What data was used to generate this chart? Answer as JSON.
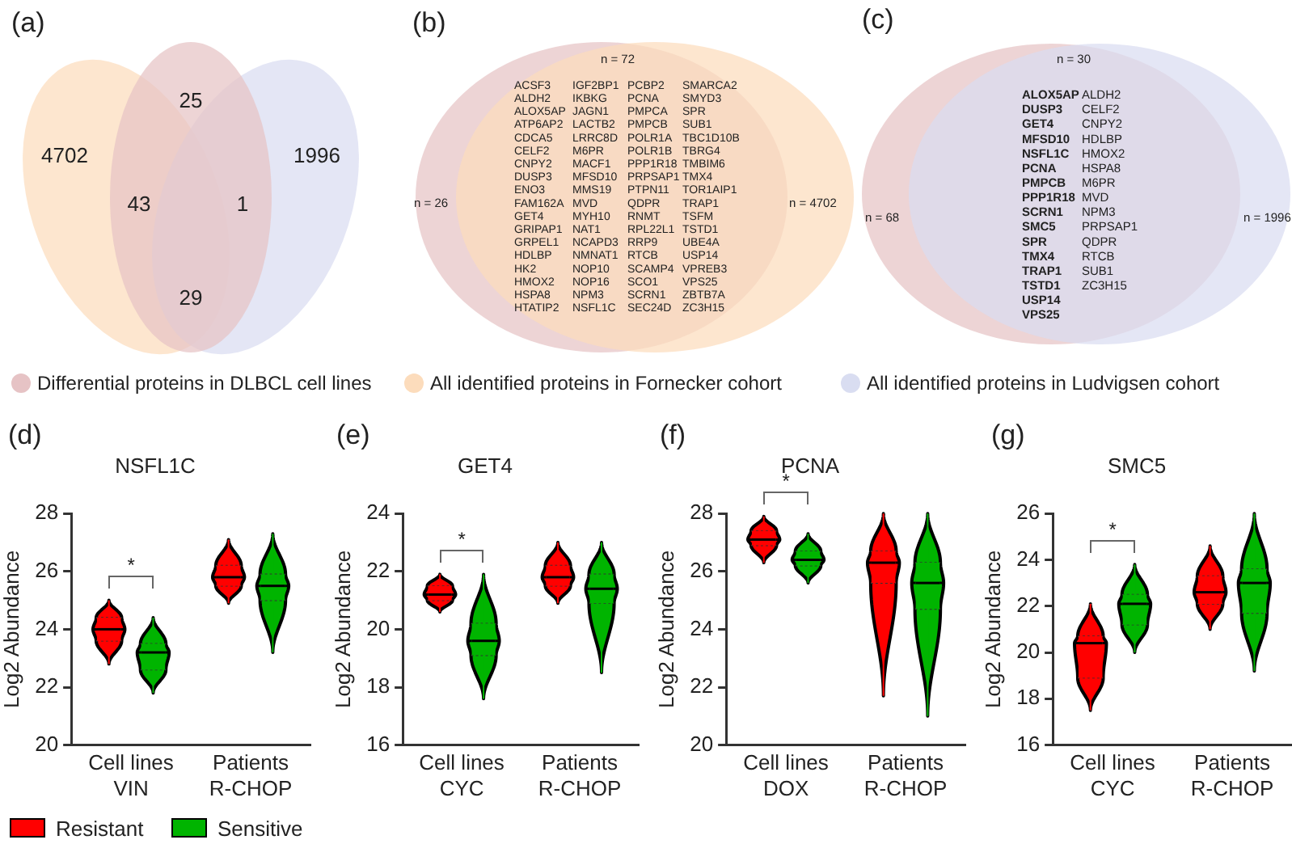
{
  "chart_data": [
    {
      "type": "other",
      "annotations": [
        "(a)",
        "4702",
        "25",
        "1996",
        "43",
        "1",
        "29"
      ],
      "series": [
        {
          "name": "Differential proteins in DLBCL cell lines",
          "color": "#e6c3c5"
        },
        {
          "name": "All identified proteins in Fornecker cohort",
          "color": "#fcdcbc"
        },
        {
          "name": "All identified proteins in Ludvigsen cohort",
          "color": "#d9ddf1"
        }
      ],
      "legend": "bottom"
    },
    {
      "type": "other",
      "annotations": [
        "(b)",
        "n = 72",
        "n = 26",
        "n = 4702",
        "ACSF3",
        "ALDH2",
        "ALOX5AP",
        "ATP6AP2",
        "CDCA5",
        "CELF2",
        "CNPY2",
        "DUSP3",
        "ENO3",
        "FAM162A",
        "GET4",
        "GRIPAP1",
        "GRPEL1",
        "HDLBP",
        "HK2",
        "HMOX2",
        "HSPA8",
        "HTATIP2",
        "IGF2BP1",
        "IKBKG",
        "JAGN1",
        "LACTB2",
        "LRRC8D",
        "M6PR",
        "MACF1",
        "MFSD10",
        "MMS19",
        "MVD",
        "MYH10",
        "NAT1",
        "NCAPD3",
        "NMNAT1",
        "NOP10",
        "NOP16",
        "NPM3",
        "NSFL1C",
        "PCBP2",
        "PCNA",
        "PMPCA",
        "PMPCB",
        "POLR1A",
        "POLR1B",
        "PPP1R18",
        "PRPSAP1",
        "PTPN11",
        "QDPR",
        "RNMT",
        "RPL22L1",
        "RRP9",
        "RTCB",
        "SCAMP4",
        "SCO1",
        "SCRN1",
        "SEC24D",
        "SMARCA2",
        "SMYD3",
        "SPR",
        "SUB1",
        "TBC1D10B",
        "TBRG4",
        "TMBIM6",
        "TMX4",
        "TOR1AIP1",
        "TRAP1",
        "TSFM",
        "TSTD1",
        "UBE4A",
        "USP14",
        "VPREB3",
        "VPS25",
        "ZBTB7A",
        "ZC3H15"
      ]
    },
    {
      "type": "other",
      "annotations": [
        "(c)",
        "n = 30",
        "n = 68",
        "n = 1996",
        "ALOX5AP",
        "DUSP3",
        "GET4",
        "MFSD10",
        "NSFL1C",
        "PCNA",
        "PMPCB",
        "PPP1R18",
        "SCRN1",
        "SMC5",
        "SPR",
        "TMX4",
        "TRAP1",
        "TSTD1",
        "USP14",
        "VPS25",
        "ALDH2",
        "CELF2",
        "CNPY2",
        "HDLBP",
        "HMOX2",
        "HSPA8",
        "M6PR",
        "MVD",
        "NPM3",
        "PRPSAP1",
        "QDPR",
        "RTCB",
        "SUB1",
        "ZC3H15"
      ]
    },
    {
      "type": "box",
      "title": "NSFL1C",
      "ylabel": "Log2 Abundance",
      "categories": [
        "Cell lines\nVIN",
        "Patients\nR-CHOP"
      ],
      "ylim": [
        20,
        28
      ],
      "yticks": [
        20,
        22,
        24,
        26,
        28
      ],
      "legend": "bottom left",
      "annotations": [
        "(d)",
        "*"
      ],
      "series": [
        {
          "name": "Resistant",
          "color": "#ff0000",
          "boxes": [
            {
              "low": 22.8,
              "q1": 23.6,
              "median": 24.0,
              "q3": 24.4,
              "high": 25.0
            },
            {
              "low": 24.9,
              "q1": 25.5,
              "median": 25.8,
              "q3": 26.2,
              "high": 27.1
            }
          ]
        },
        {
          "name": "Sensitive",
          "color": "#00b400",
          "boxes": [
            {
              "low": 21.8,
              "q1": 22.6,
              "median": 23.2,
              "q3": 23.5,
              "high": 24.4
            },
            {
              "low": 23.2,
              "q1": 25.0,
              "median": 25.5,
              "q3": 25.9,
              "high": 27.3
            }
          ]
        }
      ]
    },
    {
      "type": "box",
      "title": "GET4",
      "ylabel": "Log2 Abundance",
      "categories": [
        "Cell lines\nCYC",
        "Patients\nR-CHOP"
      ],
      "ylim": [
        16,
        24
      ],
      "yticks": [
        16,
        18,
        20,
        22,
        24
      ],
      "annotations": [
        "(e)",
        "*"
      ],
      "series": [
        {
          "color": "#ff0000",
          "boxes": [
            {
              "low": 20.6,
              "q1": 21.0,
              "median": 21.2,
              "q3": 21.5,
              "high": 21.9
            },
            {
              "low": 20.9,
              "q1": 21.5,
              "median": 21.8,
              "q3": 22.2,
              "high": 23.0
            }
          ]
        },
        {
          "color": "#00b400",
          "boxes": [
            {
              "low": 17.6,
              "q1": 19.1,
              "median": 19.6,
              "q3": 20.2,
              "high": 21.9
            },
            {
              "low": 18.5,
              "q1": 20.9,
              "median": 21.4,
              "q3": 21.9,
              "high": 23.0
            }
          ]
        }
      ]
    },
    {
      "type": "box",
      "title": "PCNA",
      "ylabel": "Log2 Abundance",
      "categories": [
        "Cell lines\nDOX",
        "Patients\nR-CHOP"
      ],
      "ylim": [
        20,
        28
      ],
      "yticks": [
        20,
        22,
        24,
        26,
        28
      ],
      "annotations": [
        "(f)",
        "*"
      ],
      "series": [
        {
          "color": "#ff0000",
          "boxes": [
            {
              "low": 26.3,
              "q1": 26.9,
              "median": 27.1,
              "q3": 27.4,
              "high": 27.9
            },
            {
              "low": 21.7,
              "q1": 25.6,
              "median": 26.3,
              "q3": 26.7,
              "high": 28.0
            }
          ]
        },
        {
          "color": "#00b400",
          "boxes": [
            {
              "low": 25.6,
              "q1": 26.2,
              "median": 26.4,
              "q3": 26.7,
              "high": 27.3
            },
            {
              "low": 21.0,
              "q1": 24.7,
              "median": 25.6,
              "q3": 26.3,
              "high": 28.0
            }
          ]
        }
      ]
    },
    {
      "type": "box",
      "title": "SMC5",
      "ylabel": "Log2 Abundance",
      "categories": [
        "Cell lines\nCYC",
        "Patients\nR-CHOP"
      ],
      "ylim": [
        16,
        26
      ],
      "yticks": [
        16,
        18,
        20,
        22,
        24,
        26
      ],
      "annotations": [
        "(g)",
        "*"
      ],
      "series": [
        {
          "color": "#ff0000",
          "boxes": [
            {
              "low": 17.5,
              "q1": 18.9,
              "median": 20.4,
              "q3": 20.7,
              "high": 22.1
            },
            {
              "low": 21.0,
              "q1": 22.1,
              "median": 22.6,
              "q3": 23.3,
              "high": 24.6
            }
          ]
        },
        {
          "color": "#00b400",
          "boxes": [
            {
              "low": 20.0,
              "q1": 21.2,
              "median": 22.1,
              "q3": 22.5,
              "high": 23.8
            },
            {
              "low": 19.2,
              "q1": 21.7,
              "median": 23.0,
              "q3": 23.6,
              "high": 26.0
            }
          ]
        }
      ]
    }
  ]
}
